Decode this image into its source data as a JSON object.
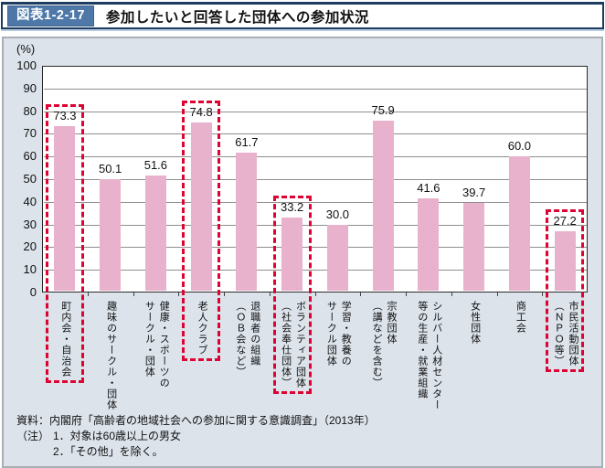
{
  "header": {
    "figure_label": "図表1-2-17",
    "title": "参加したいと回答した団体への参加状況"
  },
  "chart_data": {
    "type": "bar",
    "title": "参加したいと回答した団体への参加状況",
    "unit_label": "(%)",
    "ylabel": "(%)",
    "xlabel": "",
    "ylim": [
      0,
      100
    ],
    "ytick_step": 10,
    "grid": true,
    "bar_color": "#e9b2cc",
    "highlight_color": "#dd0433",
    "categories": [
      "町内会・自治会",
      "趣味のサークル・団体",
      "健康・スポーツの\nサークル・団体",
      "老人クラブ",
      "退職者の組織\n（ＯＢ会など）",
      "ボランティア団体\n（社会奉仕団体）",
      "学習・教養の\nサークル団体",
      "宗教団体\n（講などを含む）",
      "シルバー人材センター\n等の生産・就業組織",
      "女性団体",
      "商工会",
      "市民活動団体\n（ＮＰＯ等）"
    ],
    "values": [
      73.3,
      50.1,
      51.6,
      74.8,
      61.7,
      33.2,
      30.0,
      75.9,
      41.6,
      39.7,
      60.0,
      27.2
    ],
    "highlighted_indices": [
      0,
      3,
      5,
      11
    ]
  },
  "footer": {
    "source": "資料：内閣府「高齢者の地域社会への参加に関する意識調査」（2013年）",
    "note_label": "（注）",
    "notes": [
      "1．対象は60歳以上の男女",
      "2．「その他」を除く。"
    ]
  }
}
